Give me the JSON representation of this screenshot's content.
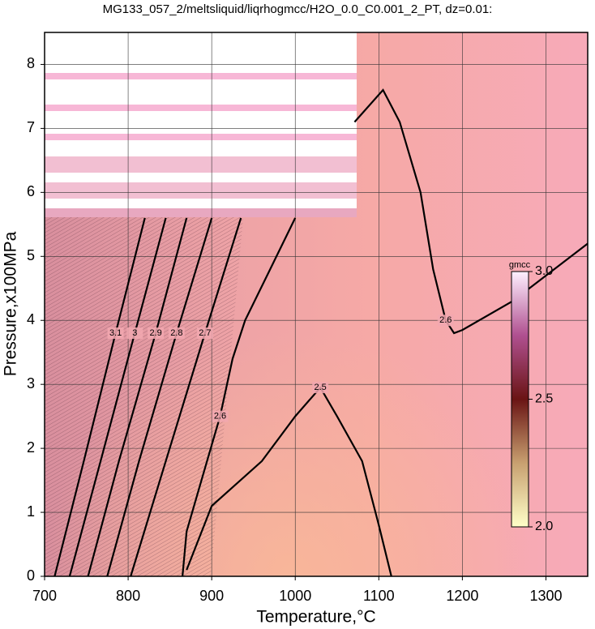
{
  "chart_data": {
    "type": "contour",
    "title": "MG133_057_2/meltsliquid/liqrhogmcc/H2O_0.0_C0.001_2_PT, dz=0.01:",
    "x_label": "Temperature,°C",
    "y_label": "Pressure,x100MPa",
    "xlim": [
      700,
      1350
    ],
    "ylim": [
      0,
      8.5
    ],
    "xticks": [
      700,
      800,
      900,
      1000,
      1100,
      1200,
      1300
    ],
    "yticks": [
      0,
      1,
      2,
      3,
      4,
      5,
      6,
      7,
      8
    ],
    "grid": true,
    "contours": [
      {
        "label": "2.6",
        "x": [
          1071,
          1105,
          1125,
          1150,
          1165,
          1180,
          1190,
          1200,
          1260,
          1350
        ],
        "y": [
          7.1,
          7.6,
          7.1,
          6.0,
          4.8,
          4.0,
          3.8,
          3.85,
          4.3,
          5.2
        ]
      },
      {
        "label": "2.6",
        "x": [
          1000,
          970,
          940,
          925,
          910,
          890,
          870,
          865
        ],
        "y": [
          5.6,
          4.8,
          4.0,
          3.4,
          2.5,
          1.6,
          0.7,
          0
        ]
      },
      {
        "label": "2.5",
        "x": [
          870,
          900,
          960,
          1000,
          1030,
          1050,
          1080,
          1100,
          1115
        ],
        "y": [
          0.1,
          1.1,
          1.8,
          2.5,
          2.95,
          2.5,
          1.8,
          0.8,
          0
        ]
      },
      {
        "label": "2.7",
        "x": [
          803,
          845,
          892,
          935
        ],
        "y": [
          0,
          1.8,
          3.8,
          5.6
        ]
      },
      {
        "label": "2.8",
        "x": [
          775,
          813,
          858,
          900
        ],
        "y": [
          0,
          1.8,
          3.8,
          5.6
        ]
      },
      {
        "label": "2.9",
        "x": [
          752,
          789,
          833,
          870
        ],
        "y": [
          0,
          1.8,
          3.8,
          5.6
        ]
      },
      {
        "label": "3",
        "x": [
          730,
          767,
          808,
          845
        ],
        "y": [
          0,
          1.8,
          3.8,
          5.6
        ]
      },
      {
        "label": "3.1",
        "x": [
          712,
          747,
          785,
          820
        ],
        "y": [
          0,
          1.8,
          3.8,
          5.6
        ]
      }
    ],
    "colorbar": {
      "label": "gmcc",
      "lim": [
        2,
        3
      ],
      "ticks": [
        {
          "value": 2,
          "label": "2.0"
        },
        {
          "value": 2.5,
          "label": "2.5"
        },
        {
          "value": 3,
          "label": "3.0"
        }
      ]
    }
  }
}
